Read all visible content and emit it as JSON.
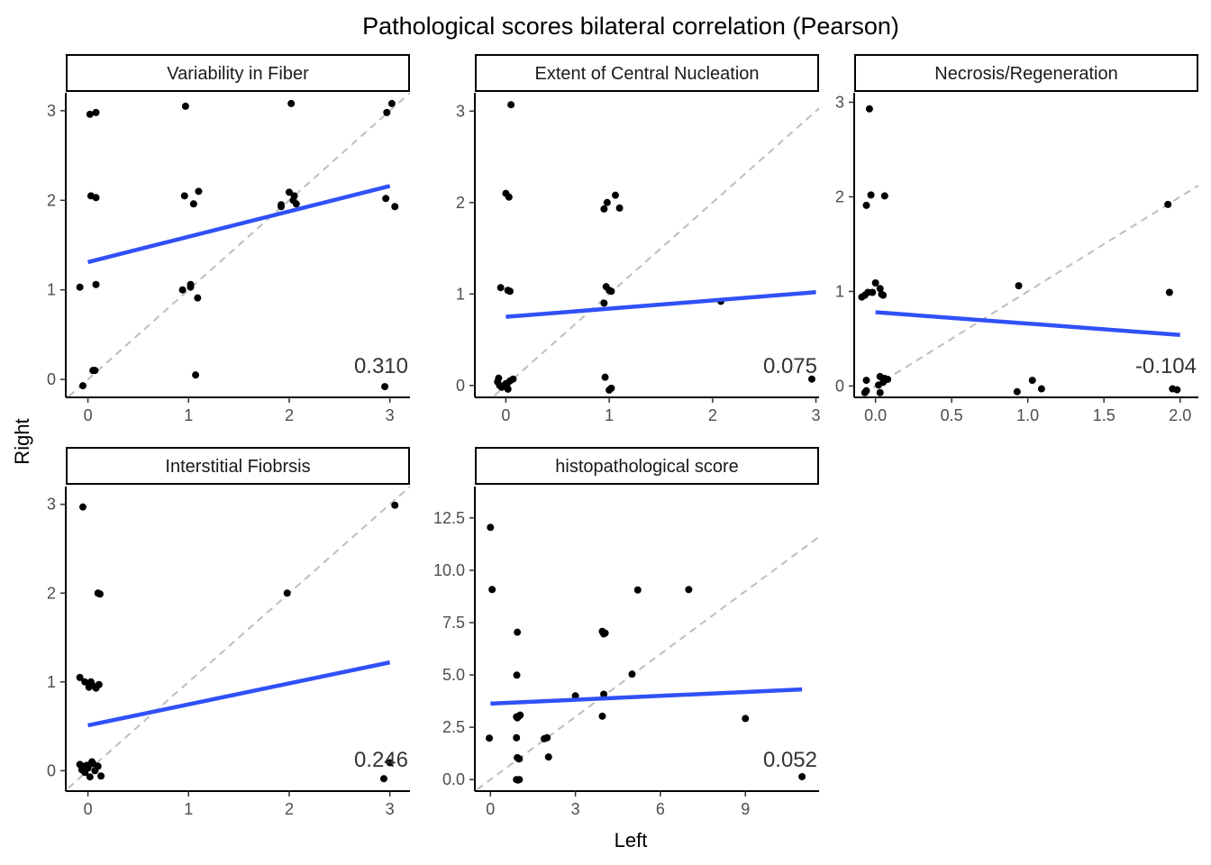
{
  "chart_data": {
    "type": "scatter",
    "title": "Pathological scores bilateral correlation (Pearson)",
    "xlabel": "Left",
    "ylabel": "Right",
    "colors": {
      "points": "#000000",
      "fit_line": "#3050f8",
      "identity_line": "#bdbdbd"
    },
    "panels": [
      {
        "title": "Variability in Fiber",
        "xlim": [
          -0.22,
          3.2
        ],
        "ylim": [
          -0.2,
          3.2
        ],
        "xticks": [
          {
            "v": 0,
            "label": "0"
          },
          {
            "v": 1,
            "label": "1"
          },
          {
            "v": 2,
            "label": "2"
          },
          {
            "v": 3,
            "label": "3"
          }
        ],
        "yticks": [
          {
            "v": 0,
            "label": "0"
          },
          {
            "v": 1,
            "label": "1"
          },
          {
            "v": 2,
            "label": "2"
          },
          {
            "v": 3,
            "label": "3"
          }
        ],
        "fit": {
          "x": [
            0,
            3
          ],
          "y": [
            1.31,
            2.16
          ]
        },
        "correlation": "0.310",
        "points": [
          [
            0.02,
            2.96
          ],
          [
            0.08,
            2.98
          ],
          [
            0.03,
            2.05
          ],
          [
            0.08,
            2.03
          ],
          [
            -0.08,
            1.03
          ],
          [
            0.08,
            1.06
          ],
          [
            0.07,
            0.1
          ],
          [
            0.05,
            0.1
          ],
          [
            -0.05,
            -0.07
          ],
          [
            0.97,
            3.05
          ],
          [
            0.96,
            2.05
          ],
          [
            1.05,
            1.96
          ],
          [
            1.1,
            2.1
          ],
          [
            0.94,
            1.0
          ],
          [
            1.02,
            1.03
          ],
          [
            1.02,
            1.06
          ],
          [
            1.09,
            0.91
          ],
          [
            1.07,
            0.05
          ],
          [
            2.02,
            3.08
          ],
          [
            1.92,
            1.95
          ],
          [
            1.92,
            1.93
          ],
          [
            2.0,
            2.09
          ],
          [
            2.05,
            2.05
          ],
          [
            2.04,
            2.0
          ],
          [
            2.07,
            1.96
          ],
          [
            2.97,
            2.98
          ],
          [
            3.02,
            3.08
          ],
          [
            2.96,
            2.02
          ],
          [
            3.05,
            1.93
          ],
          [
            2.95,
            -0.08
          ]
        ]
      },
      {
        "title": "Extent of Central Nucleation",
        "xlim": [
          -0.3,
          3.03
        ],
        "ylim": [
          -0.13,
          3.2
        ],
        "xticks": [
          {
            "v": 0,
            "label": "0"
          },
          {
            "v": 1,
            "label": "1"
          },
          {
            "v": 2,
            "label": "2"
          },
          {
            "v": 3,
            "label": "3"
          }
        ],
        "yticks": [
          {
            "v": 0,
            "label": "0"
          },
          {
            "v": 1,
            "label": "1"
          },
          {
            "v": 2,
            "label": "2"
          },
          {
            "v": 3,
            "label": "3"
          }
        ],
        "fit": {
          "x": [
            0,
            3
          ],
          "y": [
            0.75,
            1.02
          ]
        },
        "correlation": "0.075",
        "points": [
          [
            0.05,
            3.07
          ],
          [
            0.0,
            2.1
          ],
          [
            0.03,
            2.06
          ],
          [
            -0.05,
            1.07
          ],
          [
            0.02,
            1.04
          ],
          [
            0.04,
            1.03
          ],
          [
            -0.07,
            0.08
          ],
          [
            -0.06,
            0.0
          ],
          [
            -0.04,
            -0.02
          ],
          [
            0.0,
            0.02
          ],
          [
            0.02,
            -0.04
          ],
          [
            0.04,
            0.05
          ],
          [
            0.07,
            0.07
          ],
          [
            -0.08,
            0.04
          ],
          [
            0.01,
            0.01
          ],
          [
            0.95,
            1.93
          ],
          [
            0.98,
            2.0
          ],
          [
            1.06,
            2.08
          ],
          [
            1.1,
            1.94
          ],
          [
            0.97,
            1.08
          ],
          [
            1.0,
            1.04
          ],
          [
            1.02,
            1.03
          ],
          [
            0.95,
            0.9
          ],
          [
            0.96,
            0.09
          ],
          [
            1.0,
            -0.05
          ],
          [
            1.02,
            -0.03
          ],
          [
            2.08,
            0.92
          ],
          [
            2.96,
            0.07
          ]
        ]
      },
      {
        "title": "Necrosis/Regeneration",
        "xlim": [
          -0.14,
          2.12
        ],
        "ylim": [
          -0.12,
          3.1
        ],
        "xticks": [
          {
            "v": 0,
            "label": "0.0"
          },
          {
            "v": 0.5,
            "label": "0.5"
          },
          {
            "v": 1,
            "label": "1.0"
          },
          {
            "v": 1.5,
            "label": "1.5"
          },
          {
            "v": 2,
            "label": "2.0"
          }
        ],
        "yticks": [
          {
            "v": 0,
            "label": "0"
          },
          {
            "v": 1,
            "label": "1"
          },
          {
            "v": 2,
            "label": "2"
          },
          {
            "v": 3,
            "label": "3"
          }
        ],
        "fit": {
          "x": [
            0,
            2
          ],
          "y": [
            0.78,
            0.54
          ]
        },
        "correlation": "-0.104",
        "points": [
          [
            -0.04,
            2.93
          ],
          [
            -0.03,
            2.02
          ],
          [
            0.06,
            2.01
          ],
          [
            -0.06,
            1.91
          ],
          [
            -0.09,
            0.94
          ],
          [
            -0.07,
            0.96
          ],
          [
            -0.05,
            0.99
          ],
          [
            0.0,
            1.09
          ],
          [
            0.03,
            1.03
          ],
          [
            0.05,
            0.96
          ],
          [
            0.04,
            0.97
          ],
          [
            -0.02,
            0.99
          ],
          [
            -0.06,
            0.06
          ],
          [
            -0.06,
            -0.05
          ],
          [
            -0.07,
            -0.07
          ],
          [
            0.02,
            0.01
          ],
          [
            0.03,
            0.1
          ],
          [
            0.06,
            0.08
          ],
          [
            0.06,
            0.06
          ],
          [
            0.03,
            -0.07
          ],
          [
            0.08,
            0.07
          ],
          [
            0.05,
            0.04
          ],
          [
            0.94,
            1.06
          ],
          [
            0.93,
            -0.06
          ],
          [
            1.03,
            0.06
          ],
          [
            1.09,
            -0.03
          ],
          [
            1.92,
            1.92
          ],
          [
            1.93,
            0.99
          ],
          [
            1.95,
            -0.03
          ],
          [
            1.98,
            -0.04
          ]
        ]
      },
      {
        "title": "Interstitial Fiobrsis",
        "xlim": [
          -0.22,
          3.2
        ],
        "ylim": [
          -0.23,
          3.2
        ],
        "xticks": [
          {
            "v": 0,
            "label": "0"
          },
          {
            "v": 1,
            "label": "1"
          },
          {
            "v": 2,
            "label": "2"
          },
          {
            "v": 3,
            "label": "3"
          }
        ],
        "yticks": [
          {
            "v": 0,
            "label": "0"
          },
          {
            "v": 1,
            "label": "1"
          },
          {
            "v": 2,
            "label": "2"
          },
          {
            "v": 3,
            "label": "3"
          }
        ],
        "fit": {
          "x": [
            0,
            3
          ],
          "y": [
            0.51,
            1.22
          ]
        },
        "correlation": "0.246",
        "points": [
          [
            -0.05,
            2.97
          ],
          [
            0.1,
            2.0
          ],
          [
            0.12,
            1.99
          ],
          [
            -0.08,
            1.05
          ],
          [
            -0.03,
            1.0
          ],
          [
            0.03,
            1.0
          ],
          [
            0.01,
            0.94
          ],
          [
            0.04,
            0.97
          ],
          [
            0.08,
            0.93
          ],
          [
            0.11,
            0.97
          ],
          [
            -0.08,
            0.07
          ],
          [
            -0.06,
            0.01
          ],
          [
            -0.04,
            0.05
          ],
          [
            -0.03,
            -0.02
          ],
          [
            0.0,
            0.03
          ],
          [
            0.02,
            -0.07
          ],
          [
            0.05,
            0.08
          ],
          [
            0.07,
            0.0
          ],
          [
            0.1,
            0.05
          ],
          [
            0.04,
            0.1
          ],
          [
            0.13,
            -0.06
          ],
          [
            -0.01,
            0.06
          ],
          [
            1.98,
            2.0
          ],
          [
            3.05,
            2.99
          ],
          [
            3.0,
            0.09
          ],
          [
            2.94,
            -0.09
          ]
        ]
      },
      {
        "title": "histopathological score",
        "xlim": [
          -0.55,
          11.6
        ],
        "ylim": [
          -0.55,
          14.0
        ],
        "xticks": [
          {
            "v": 0,
            "label": "0"
          },
          {
            "v": 3,
            "label": "3"
          },
          {
            "v": 6,
            "label": "6"
          },
          {
            "v": 9,
            "label": "9"
          }
        ],
        "yticks": [
          {
            "v": 0,
            "label": "0.0"
          },
          {
            "v": 2.5,
            "label": "2.5"
          },
          {
            "v": 5,
            "label": "5.0"
          },
          {
            "v": 7.5,
            "label": "7.5"
          },
          {
            "v": 10,
            "label": "10.0"
          },
          {
            "v": 12.5,
            "label": "12.5"
          }
        ],
        "fit": {
          "x": [
            0,
            11
          ],
          "y": [
            3.63,
            4.31
          ]
        },
        "correlation": "0.052",
        "points": [
          [
            0.0,
            12.05
          ],
          [
            0.06,
            9.08
          ],
          [
            -0.04,
            1.98
          ],
          [
            0.95,
            7.04
          ],
          [
            0.93,
            4.99
          ],
          [
            0.92,
            3.0
          ],
          [
            0.95,
            2.95
          ],
          [
            1.0,
            3.03
          ],
          [
            1.05,
            3.08
          ],
          [
            0.92,
            2.0
          ],
          [
            0.95,
            1.05
          ],
          [
            1.0,
            0.99
          ],
          [
            1.02,
            0.99
          ],
          [
            0.92,
            0.0
          ],
          [
            0.97,
            -0.02
          ],
          [
            1.02,
            0.0
          ],
          [
            1.9,
            1.95
          ],
          [
            2.0,
            2.0
          ],
          [
            2.05,
            1.08
          ],
          [
            3.0,
            4.0
          ],
          [
            3.95,
            7.08
          ],
          [
            4.0,
            6.96
          ],
          [
            4.05,
            7.0
          ],
          [
            4.0,
            4.08
          ],
          [
            3.95,
            3.03
          ],
          [
            5.0,
            5.04
          ],
          [
            5.2,
            9.06
          ],
          [
            7.0,
            9.08
          ],
          [
            9.0,
            2.92
          ],
          [
            11.0,
            0.14
          ]
        ]
      }
    ]
  }
}
